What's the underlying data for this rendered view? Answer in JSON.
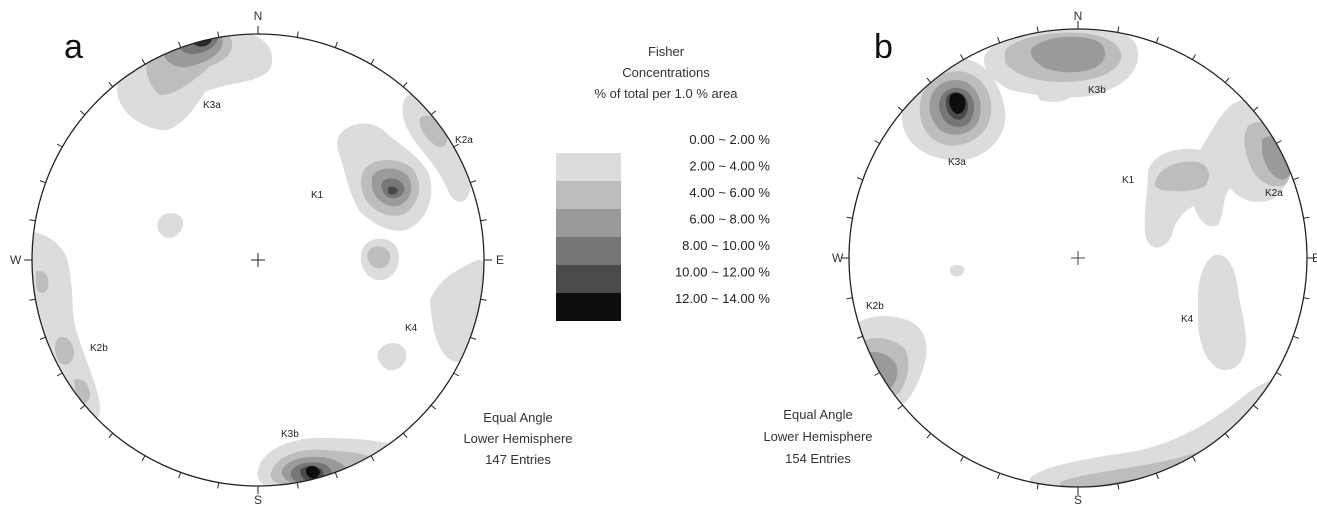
{
  "panels": [
    {
      "letter": "a",
      "north": "N",
      "south": "S",
      "east": "E",
      "west": "W",
      "sets": [
        "K3a",
        "K2a",
        "K1",
        "K4",
        "K2b",
        "K3b"
      ],
      "info": [
        "Equal Angle",
        "Lower Hemisphere",
        "147 Entries"
      ]
    },
    {
      "letter": "b",
      "north": "N",
      "south": "S",
      "east": "E",
      "west": "W",
      "sets": [
        "K3b",
        "K3a",
        "K1",
        "K2a",
        "K4",
        "K2b"
      ],
      "info": [
        "Equal Angle",
        "Lower Hemisphere",
        "154 Entries"
      ]
    }
  ],
  "legend": {
    "title": [
      "Fisher",
      "Concentrations",
      "% of total per 1.0 % area"
    ],
    "bins": [
      {
        "label": "0.00 ~ 2.00 %",
        "color": "#ffffff"
      },
      {
        "label": "2.00 ~ 4.00 %",
        "color": "#dcdcdc"
      },
      {
        "label": "4.00 ~ 6.00 %",
        "color": "#bdbdbd"
      },
      {
        "label": "6.00 ~ 8.00 %",
        "color": "#9a9a9a"
      },
      {
        "label": "8.00 ~ 10.00 %",
        "color": "#767676"
      },
      {
        "label": "10.00 ~ 12.00 %",
        "color": "#4a4a4a"
      },
      {
        "label": "12.00 ~ 14.00 %",
        "color": "#0d0d0d"
      }
    ]
  }
}
